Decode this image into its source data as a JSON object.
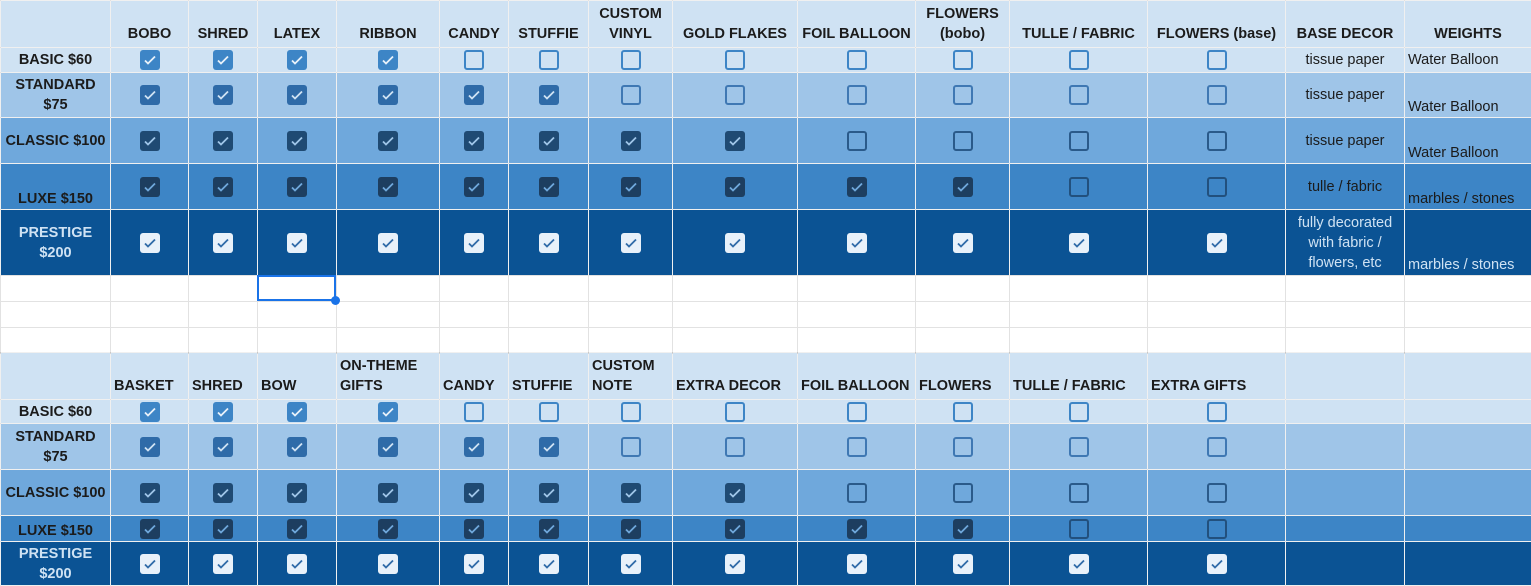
{
  "colors": {
    "header": "#cfe2f3",
    "basic": "#cfe2f3",
    "standard": "#9fc5e8",
    "classic": "#6fa8dc",
    "luxe": "#3d85c6",
    "prestige": "#0b5394",
    "selection": "#1a73e8"
  },
  "top_table": {
    "headers": [
      "",
      "BOBO",
      "SHRED",
      "LATEX",
      "RIBBON",
      "CANDY",
      "STUFFIE",
      "CUSTOM VINYL",
      "GOLD FLAKES",
      "FOIL BALLOON",
      "FLOWERS (bobo)",
      "TULLE / FABRIC",
      "FLOWERS (base)",
      "BASE DECOR",
      "WEIGHTS"
    ],
    "rows": [
      {
        "label": "BASIC $60",
        "checks": [
          true,
          true,
          true,
          true,
          false,
          false,
          false,
          false,
          false,
          false,
          false,
          false
        ],
        "base_decor": "tissue paper",
        "weights": "Water Balloon"
      },
      {
        "label": "STANDARD $75",
        "checks": [
          true,
          true,
          true,
          true,
          true,
          true,
          false,
          false,
          false,
          false,
          false,
          false
        ],
        "base_decor": "tissue paper",
        "weights": "Water Balloon"
      },
      {
        "label": "CLASSIC $100",
        "checks": [
          true,
          true,
          true,
          true,
          true,
          true,
          true,
          true,
          false,
          false,
          false,
          false
        ],
        "base_decor": "tissue paper",
        "weights": "Water Balloon"
      },
      {
        "label": "LUXE $150",
        "checks": [
          true,
          true,
          true,
          true,
          true,
          true,
          true,
          true,
          true,
          true,
          false,
          false
        ],
        "base_decor": "tulle / fabric",
        "weights": "marbles / stones"
      },
      {
        "label": "PRESTIGE $200",
        "checks": [
          true,
          true,
          true,
          true,
          true,
          true,
          true,
          true,
          true,
          true,
          true,
          true
        ],
        "base_decor": "fully decorated with fabric / flowers, etc",
        "weights": "marbles / stones"
      }
    ]
  },
  "bottom_table": {
    "headers": [
      "",
      "BASKET",
      "SHRED",
      "BOW",
      "ON-THEME GIFTS",
      "CANDY",
      "STUFFIE",
      "CUSTOM NOTE",
      "EXTRA DECOR",
      "FOIL BALLOON",
      "FLOWERS",
      "TULLE / FABRIC",
      "EXTRA GIFTS",
      "",
      ""
    ],
    "rows": [
      {
        "label": "BASIC $60",
        "checks": [
          true,
          true,
          true,
          true,
          false,
          false,
          false,
          false,
          false,
          false,
          false,
          false
        ]
      },
      {
        "label": "STANDARD $75",
        "checks": [
          true,
          true,
          true,
          true,
          true,
          true,
          false,
          false,
          false,
          false,
          false,
          false
        ]
      },
      {
        "label": "CLASSIC $100",
        "checks": [
          true,
          true,
          true,
          true,
          true,
          true,
          true,
          true,
          false,
          false,
          false,
          false
        ]
      },
      {
        "label": "LUXE $150",
        "checks": [
          true,
          true,
          true,
          true,
          true,
          true,
          true,
          true,
          true,
          true,
          false,
          false
        ]
      },
      {
        "label": "PRESTIGE $200",
        "checks": [
          true,
          true,
          true,
          true,
          true,
          true,
          true,
          true,
          true,
          true,
          true,
          true
        ]
      }
    ]
  }
}
